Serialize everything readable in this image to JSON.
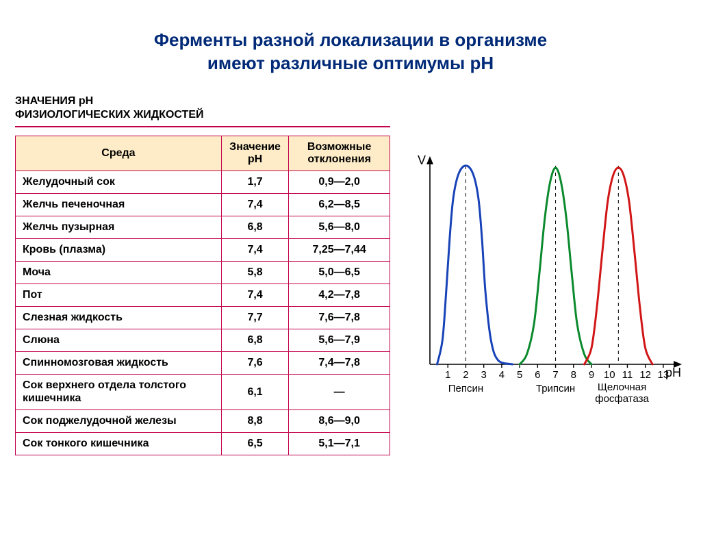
{
  "title_line1": "Ферменты разной локализации в организме",
  "title_line2": "имеют различные оптимумы рН",
  "table": {
    "caption_line1": "ЗНАЧЕНИЯ рН",
    "caption_line2": "ФИЗИОЛОГИЧЕСКИХ ЖИДКОСТЕЙ",
    "columns": [
      "Среда",
      "Значение рН",
      "Возможные отклонения"
    ],
    "rows": [
      [
        "Желудочный сок",
        "1,7",
        "0,9—2,0"
      ],
      [
        "Желчь печеночная",
        "7,4",
        "6,2—8,5"
      ],
      [
        "Желчь пузырная",
        "6,8",
        "5,6—8,0"
      ],
      [
        "Кровь (плазма)",
        "7,4",
        "7,25—7,44"
      ],
      [
        "Моча",
        "5,8",
        "5,0—6,5"
      ],
      [
        "Пот",
        "7,4",
        "4,2—7,8"
      ],
      [
        "Слезная жидкость",
        "7,7",
        "7,6—7,8"
      ],
      [
        "Слюна",
        "6,8",
        "5,6—7,9"
      ],
      [
        "Спинномозговая жидкость",
        "7,6",
        "7,4—7,8"
      ],
      [
        "Сок верхнего отдела толстого кишечника",
        "6,1",
        "—"
      ],
      [
        "Сок поджелудочной железы",
        "8,8",
        "8,6—9,0"
      ],
      [
        "Сок тонкого кишечника",
        "6,5",
        "5,1—7,1"
      ]
    ],
    "header_bg": "#fdecc7",
    "border_color": "#c2004b",
    "font_size": 16
  },
  "chart": {
    "type": "line",
    "y_label": "V",
    "x_label": "pH",
    "x_ticks": [
      1,
      2,
      3,
      4,
      5,
      6,
      7,
      8,
      9,
      10,
      11,
      12,
      13
    ],
    "xlim": [
      0,
      13.5
    ],
    "axis_color": "#000000",
    "tick_fontsize": 15,
    "label_fontsize": 18,
    "series": [
      {
        "name": "Пепсин",
        "color": "#1843b8",
        "line_width": 3,
        "optimum": 2,
        "label_x": 2,
        "points": [
          [
            0.4,
            0
          ],
          [
            0.7,
            0.12
          ],
          [
            0.9,
            0.35
          ],
          [
            1.1,
            0.62
          ],
          [
            1.3,
            0.82
          ],
          [
            1.6,
            0.94
          ],
          [
            2.0,
            0.98
          ],
          [
            2.4,
            0.94
          ],
          [
            2.7,
            0.82
          ],
          [
            2.9,
            0.62
          ],
          [
            3.1,
            0.35
          ],
          [
            3.4,
            0.12
          ],
          [
            3.8,
            0.02
          ],
          [
            4.6,
            0
          ]
        ]
      },
      {
        "name": "Трипсин",
        "color": "#0a8a2d",
        "line_width": 3,
        "optimum": 7,
        "label_x": 7,
        "points": [
          [
            5.0,
            0
          ],
          [
            5.4,
            0.05
          ],
          [
            5.8,
            0.2
          ],
          [
            6.1,
            0.45
          ],
          [
            6.4,
            0.72
          ],
          [
            6.7,
            0.9
          ],
          [
            7.0,
            0.97
          ],
          [
            7.3,
            0.9
          ],
          [
            7.6,
            0.72
          ],
          [
            7.9,
            0.45
          ],
          [
            8.2,
            0.2
          ],
          [
            8.6,
            0.05
          ],
          [
            9.0,
            0
          ]
        ]
      },
      {
        "name": "Щелочная фосфатаза",
        "color": "#d21616",
        "line_width": 3,
        "optimum": 10.5,
        "label_x": 10.7,
        "points": [
          [
            8.6,
            0
          ],
          [
            9.0,
            0.08
          ],
          [
            9.3,
            0.28
          ],
          [
            9.6,
            0.55
          ],
          [
            9.9,
            0.8
          ],
          [
            10.2,
            0.93
          ],
          [
            10.5,
            0.97
          ],
          [
            10.8,
            0.93
          ],
          [
            11.1,
            0.8
          ],
          [
            11.4,
            0.55
          ],
          [
            11.7,
            0.28
          ],
          [
            12.0,
            0.08
          ],
          [
            12.4,
            0
          ]
        ]
      }
    ]
  }
}
